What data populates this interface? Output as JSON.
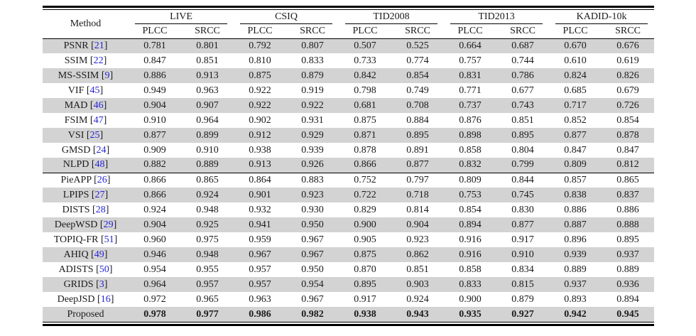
{
  "table": {
    "method_header": "Method",
    "datasets": [
      "LIVE",
      "CSIQ",
      "TID2008",
      "TID2013",
      "KADID-10k"
    ],
    "metric_headers": [
      "PLCC",
      "SRCC"
    ],
    "citation_open": "[",
    "citation_close": "]",
    "separator_after_index": 8,
    "colors": {
      "stripe": "#d3d3d3",
      "citation_blue": "#2525d6",
      "rule_black": "#000000",
      "background": "#ffffff"
    },
    "rows": [
      {
        "label": "PSNR",
        "ref": "21",
        "bold": false,
        "values": [
          "0.781",
          "0.801",
          "0.792",
          "0.807",
          "0.507",
          "0.525",
          "0.664",
          "0.687",
          "0.670",
          "0.676"
        ]
      },
      {
        "label": "SSIM",
        "ref": "22",
        "bold": false,
        "values": [
          "0.847",
          "0.851",
          "0.810",
          "0.833",
          "0.733",
          "0.774",
          "0.757",
          "0.744",
          "0.610",
          "0.619"
        ]
      },
      {
        "label": "MS-SSIM",
        "ref": "9",
        "bold": false,
        "values": [
          "0.886",
          "0.913",
          "0.875",
          "0.879",
          "0.842",
          "0.854",
          "0.831",
          "0.786",
          "0.824",
          "0.826"
        ]
      },
      {
        "label": "VIF",
        "ref": "45",
        "bold": false,
        "values": [
          "0.949",
          "0.963",
          "0.922",
          "0.919",
          "0.798",
          "0.749",
          "0.771",
          "0.677",
          "0.685",
          "0.679"
        ]
      },
      {
        "label": "MAD",
        "ref": "46",
        "bold": false,
        "values": [
          "0.904",
          "0.907",
          "0.922",
          "0.922",
          "0.681",
          "0.708",
          "0.737",
          "0.743",
          "0.717",
          "0.726"
        ]
      },
      {
        "label": "FSIM",
        "ref": "47",
        "bold": false,
        "values": [
          "0.910",
          "0.964",
          "0.902",
          "0.931",
          "0.875",
          "0.884",
          "0.876",
          "0.851",
          "0.852",
          "0.854"
        ]
      },
      {
        "label": "VSI",
        "ref": "25",
        "bold": false,
        "values": [
          "0.877",
          "0.899",
          "0.912",
          "0.929",
          "0.871",
          "0.895",
          "0.898",
          "0.895",
          "0.877",
          "0.878"
        ]
      },
      {
        "label": "GMSD",
        "ref": "24",
        "bold": false,
        "values": [
          "0.909",
          "0.910",
          "0.938",
          "0.939",
          "0.878",
          "0.891",
          "0.858",
          "0.804",
          "0.847",
          "0.847"
        ]
      },
      {
        "label": "NLPD",
        "ref": "48",
        "bold": false,
        "values": [
          "0.882",
          "0.889",
          "0.913",
          "0.926",
          "0.866",
          "0.877",
          "0.832",
          "0.799",
          "0.809",
          "0.812"
        ]
      },
      {
        "label": "PieAPP",
        "ref": "26",
        "bold": false,
        "values": [
          "0.866",
          "0.865",
          "0.864",
          "0.883",
          "0.752",
          "0.797",
          "0.809",
          "0.844",
          "0.857",
          "0.865"
        ]
      },
      {
        "label": "LPIPS",
        "ref": "27",
        "bold": false,
        "values": [
          "0.866",
          "0.924",
          "0.901",
          "0.923",
          "0.722",
          "0.718",
          "0.753",
          "0.745",
          "0.838",
          "0.837"
        ]
      },
      {
        "label": "DISTS",
        "ref": "28",
        "bold": false,
        "values": [
          "0.924",
          "0.948",
          "0.932",
          "0.930",
          "0.829",
          "0.814",
          "0.854",
          "0.830",
          "0.886",
          "0.886"
        ]
      },
      {
        "label": "DeepWSD",
        "ref": "29",
        "bold": false,
        "values": [
          "0.904",
          "0.925",
          "0.941",
          "0.950",
          "0.900",
          "0.904",
          "0.894",
          "0.877",
          "0.887",
          "0.888"
        ]
      },
      {
        "label": "TOPIQ-FR",
        "ref": "51",
        "bold": false,
        "values": [
          "0.960",
          "0.975",
          "0.959",
          "0.967",
          "0.905",
          "0.923",
          "0.916",
          "0.917",
          "0.896",
          "0.895"
        ]
      },
      {
        "label": "AHIQ",
        "ref": "49",
        "bold": false,
        "values": [
          "0.946",
          "0.948",
          "0.967",
          "0.967",
          "0.875",
          "0.862",
          "0.916",
          "0.910",
          "0.939",
          "0.937"
        ]
      },
      {
        "label": "ADISTS",
        "ref": "50",
        "bold": false,
        "values": [
          "0.954",
          "0.955",
          "0.957",
          "0.950",
          "0.870",
          "0.851",
          "0.858",
          "0.834",
          "0.889",
          "0.889"
        ]
      },
      {
        "label": "GRIDS",
        "ref": "3",
        "bold": false,
        "values": [
          "0.964",
          "0.957",
          "0.957",
          "0.954",
          "0.895",
          "0.903",
          "0.833",
          "0.815",
          "0.937",
          "0.936"
        ]
      },
      {
        "label": "DeepJSD",
        "ref": "16",
        "bold": false,
        "values": [
          "0.972",
          "0.965",
          "0.963",
          "0.967",
          "0.917",
          "0.924",
          "0.900",
          "0.879",
          "0.893",
          "0.894"
        ]
      },
      {
        "label": "Proposed",
        "ref": null,
        "bold": true,
        "values": [
          "0.978",
          "0.977",
          "0.986",
          "0.982",
          "0.938",
          "0.943",
          "0.935",
          "0.927",
          "0.942",
          "0.945"
        ]
      }
    ]
  }
}
